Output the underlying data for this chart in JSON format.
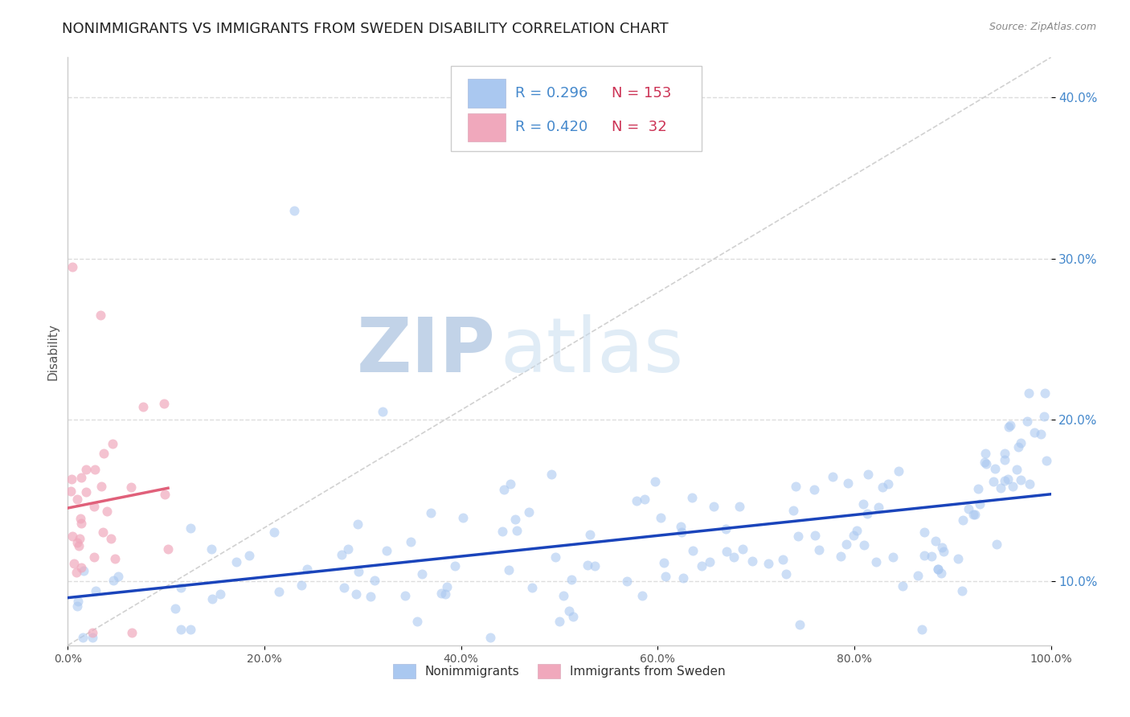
{
  "title": "NONIMMIGRANTS VS IMMIGRANTS FROM SWEDEN DISABILITY CORRELATION CHART",
  "source": "Source: ZipAtlas.com",
  "ylabel": "Disability",
  "watermark_left": "ZIP",
  "watermark_right": "atlas",
  "xlim": [
    0.0,
    1.0
  ],
  "ylim": [
    0.06,
    0.425
  ],
  "yticks": [
    0.1,
    0.2,
    0.3,
    0.4
  ],
  "ytick_labels": [
    "10.0%",
    "20.0%",
    "30.0%",
    "40.0%"
  ],
  "legend_r1": "R = 0.296",
  "legend_n1": "N = 153",
  "legend_r2": "R = 0.420",
  "legend_n2": "N =  32",
  "nonimm_color": "#aac8f0",
  "imm_color": "#f0a8bc",
  "nonimm_line_color": "#1a44bb",
  "imm_line_color": "#e0607a",
  "diag_color": "#cccccc",
  "background_color": "#ffffff",
  "title_color": "#222222",
  "title_fontsize": 13,
  "axis_label_fontsize": 11,
  "tick_fontsize": 10,
  "legend_color": "#4488cc"
}
